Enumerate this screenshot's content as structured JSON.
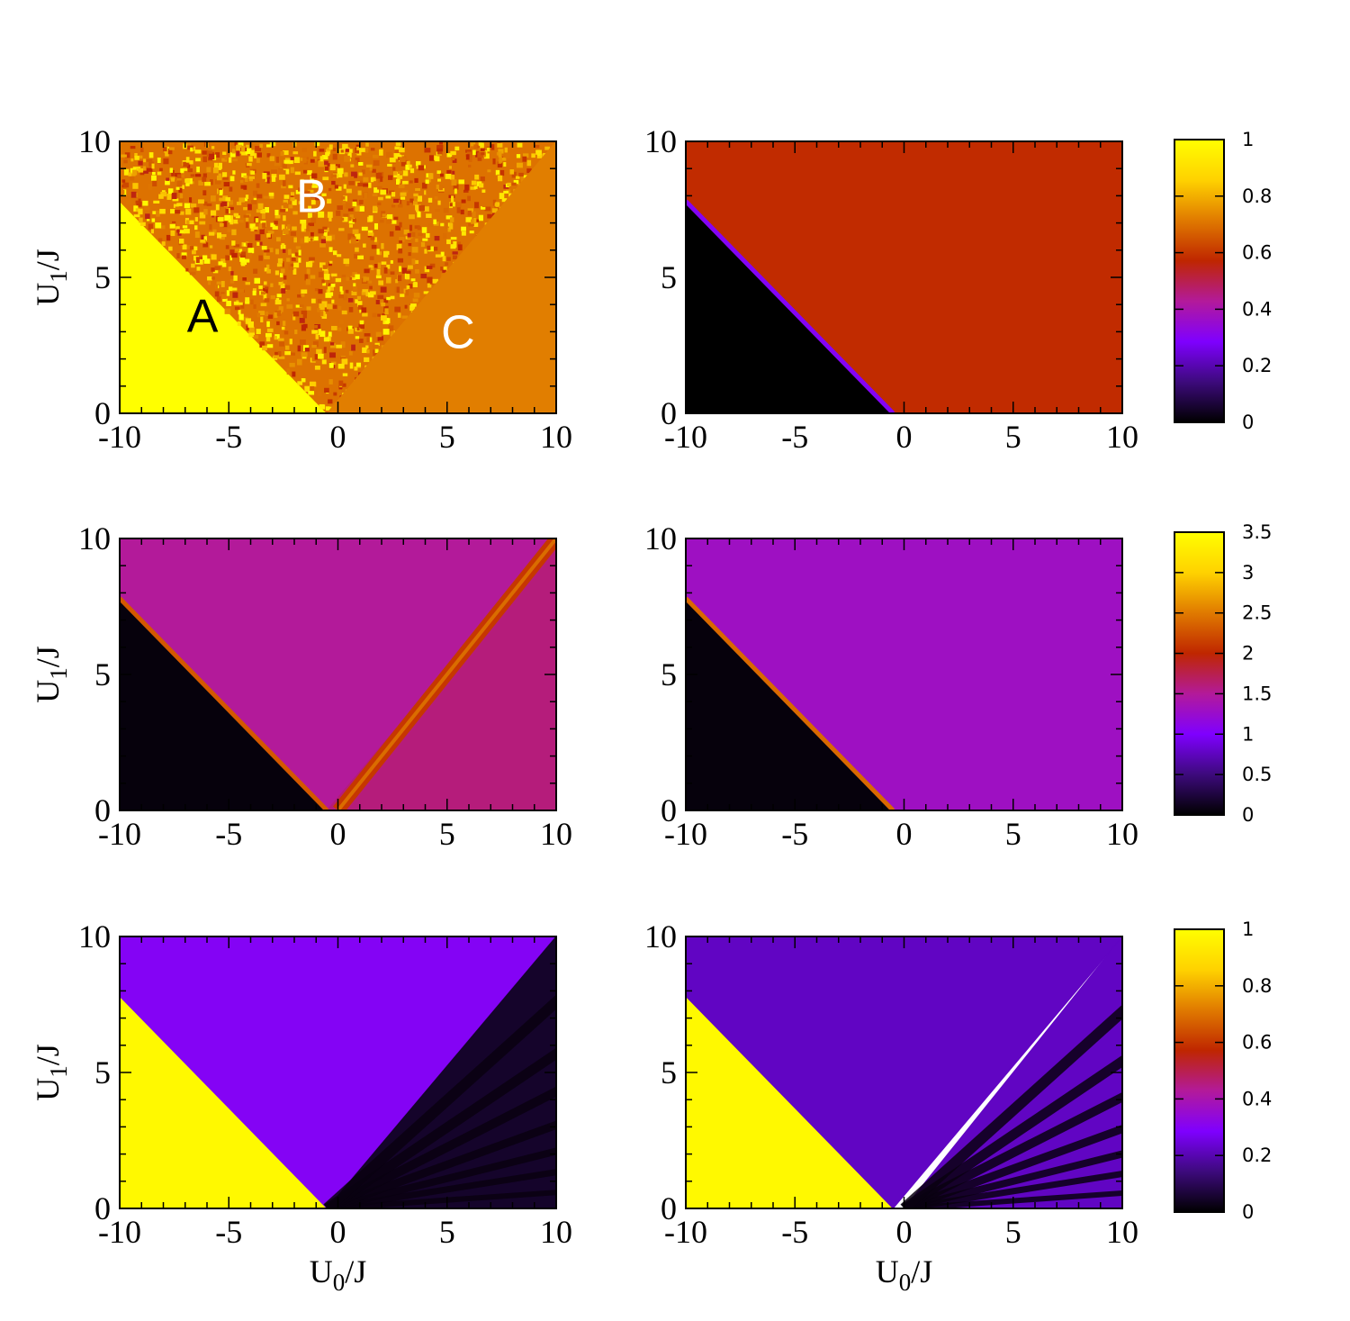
{
  "figure": {
    "colormap": [
      "#000000",
      "#3d0a7c",
      "#7f00ff",
      "#b31a9a",
      "#bf2600",
      "#e07a00",
      "#ffd200",
      "#ffff00"
    ],
    "axis_tick_color": "#000000"
  },
  "chart_data": [
    {
      "type": "heatmap",
      "panel": "row1-left",
      "xlabel": "",
      "ylabel": "U_1/J",
      "xlim": [
        -10,
        10
      ],
      "ylim": [
        0,
        10
      ],
      "xticks": [
        "-10",
        "-5",
        "0",
        "5",
        "10"
      ],
      "yticks": [
        "0",
        "5",
        "10"
      ],
      "color_range": [
        0,
        1
      ],
      "regions": [
        {
          "name": "A",
          "label": "A",
          "label_color": "#000000",
          "polygon": [
            [
              -10,
              0
            ],
            [
              -0.5,
              0
            ],
            [
              -10,
              7.8
            ]
          ],
          "value": 1.0,
          "note_label_at": [
            -6.2,
            3.6
          ]
        },
        {
          "name": "B",
          "label": "B",
          "label_color": "#ffffff",
          "polygon": [
            [
              -10,
              7.8
            ],
            [
              -0.5,
              0
            ],
            [
              10,
              10
            ],
            [
              -10,
              10
            ]
          ],
          "value": 0.7,
          "noisy": true,
          "note_label_at": [
            -1.2,
            8.0
          ]
        },
        {
          "name": "C",
          "label": "C",
          "label_color": "#ffffff",
          "polygon": [
            [
              -0.5,
              0
            ],
            [
              10,
              0
            ],
            [
              10,
              10
            ]
          ],
          "value": 0.72,
          "note_label_at": [
            5.5,
            3.0
          ]
        }
      ]
    },
    {
      "type": "heatmap",
      "panel": "row1-right",
      "xlabel": "",
      "ylabel": "",
      "xlim": [
        -10,
        10
      ],
      "ylim": [
        0,
        10
      ],
      "xticks": [
        "-10",
        "-5",
        "0",
        "5",
        "10"
      ],
      "yticks": [
        "0",
        "5",
        "10"
      ],
      "color_range": [
        0,
        1
      ],
      "regions": [
        {
          "polygon": [
            [
              -10,
              0
            ],
            [
              -0.5,
              0
            ],
            [
              -10,
              7.8
            ]
          ],
          "value": 0.0
        },
        {
          "polygon": [
            [
              -10,
              7.8
            ],
            [
              -0.5,
              0
            ],
            [
              10,
              0
            ],
            [
              10,
              10
            ],
            [
              -10,
              10
            ]
          ],
          "value": 0.58
        }
      ],
      "boundary": {
        "from": [
          -10,
          7.8
        ],
        "to": [
          -0.5,
          0
        ],
        "value": 0.3
      }
    },
    {
      "type": "heatmap",
      "panel": "row2-left",
      "xlabel": "",
      "ylabel": "U_1/J",
      "xlim": [
        -10,
        10
      ],
      "ylim": [
        0,
        10
      ],
      "xticks": [
        "-10",
        "-5",
        "0",
        "5",
        "10"
      ],
      "yticks": [
        "0",
        "5",
        "10"
      ],
      "color_range": [
        0,
        3.5
      ],
      "regions": [
        {
          "polygon": [
            [
              -10,
              0
            ],
            [
              -0.5,
              0
            ],
            [
              -10,
              7.8
            ]
          ],
          "value": 0.05
        },
        {
          "polygon": [
            [
              -10,
              7.8
            ],
            [
              -0.5,
              0
            ],
            [
              10,
              10
            ],
            [
              -10,
              10
            ]
          ],
          "value": 1.5
        },
        {
          "polygon": [
            [
              -0.5,
              0
            ],
            [
              10,
              0
            ],
            [
              10,
              10
            ]
          ],
          "value": 1.6
        }
      ],
      "boundary": {
        "from": [
          -10,
          7.8
        ],
        "to": [
          -0.5,
          0
        ],
        "value": 2.3
      },
      "diagonal_band": {
        "from": [
          0,
          0
        ],
        "to": [
          10,
          10
        ],
        "value": 2.1
      }
    },
    {
      "type": "heatmap",
      "panel": "row2-right",
      "xlabel": "",
      "ylabel": "",
      "xlim": [
        -10,
        10
      ],
      "ylim": [
        0,
        10
      ],
      "xticks": [
        "-10",
        "-5",
        "0",
        "5",
        "10"
      ],
      "yticks": [
        "0",
        "5",
        "10"
      ],
      "color_range": [
        0,
        3.5
      ],
      "regions": [
        {
          "polygon": [
            [
              -10,
              0
            ],
            [
              -0.5,
              0
            ],
            [
              -10,
              7.8
            ]
          ],
          "value": 0.05
        },
        {
          "polygon": [
            [
              -10,
              7.8
            ],
            [
              -0.5,
              0
            ],
            [
              10,
              0
            ],
            [
              10,
              10
            ],
            [
              -10,
              10
            ]
          ],
          "value": 1.3
        }
      ],
      "boundary": {
        "from": [
          -10,
          7.8
        ],
        "to": [
          -0.5,
          0
        ],
        "value": 2.4
      }
    },
    {
      "type": "heatmap",
      "panel": "row3-left",
      "xlabel": "U_0/J",
      "ylabel": "U_1/J",
      "xlim": [
        -10,
        10
      ],
      "ylim": [
        0,
        10
      ],
      "xticks": [
        "-10",
        "-5",
        "0",
        "5",
        "10"
      ],
      "yticks": [
        "0",
        "5",
        "10"
      ],
      "color_range": [
        0,
        1
      ],
      "regions": [
        {
          "polygon": [
            [
              -10,
              0
            ],
            [
              -0.5,
              0
            ],
            [
              -10,
              7.8
            ]
          ],
          "value": 0.98
        },
        {
          "polygon": [
            [
              -10,
              7.8
            ],
            [
              -0.5,
              0
            ],
            [
              10,
              10
            ],
            [
              -10,
              10
            ]
          ],
          "value": 0.3
        },
        {
          "polygon": [
            [
              -0.5,
              0
            ],
            [
              10,
              0
            ],
            [
              10,
              10
            ]
          ],
          "value": 0.05,
          "fringes": true
        }
      ]
    },
    {
      "type": "heatmap",
      "panel": "row3-right",
      "xlabel": "U_0/J",
      "ylabel": "",
      "xlim": [
        -10,
        10
      ],
      "ylim": [
        0,
        10
      ],
      "xticks": [
        "-10",
        "-5",
        "0",
        "5",
        "10"
      ],
      "yticks": [
        "0",
        "5",
        "10"
      ],
      "color_range": [
        0,
        1
      ],
      "regions": [
        {
          "polygon": [
            [
              -10,
              0
            ],
            [
              -0.5,
              0
            ],
            [
              -10,
              7.8
            ]
          ],
          "value": 0.98
        },
        {
          "polygon": [
            [
              -10,
              7.8
            ],
            [
              -0.5,
              0
            ],
            [
              10,
              10
            ],
            [
              -10,
              10
            ]
          ],
          "value": 0.22
        },
        {
          "polygon": [
            [
              0,
              0
            ],
            [
              10,
              0
            ],
            [
              10,
              10
            ]
          ],
          "value": 0.22,
          "fringes": true
        }
      ]
    }
  ],
  "colorbars": [
    {
      "row": 1,
      "min": 0,
      "max": 1,
      "ticks": [
        "0",
        "0.2",
        "0.4",
        "0.6",
        "0.8",
        "1"
      ]
    },
    {
      "row": 2,
      "min": 0,
      "max": 3.5,
      "ticks": [
        "0",
        "0.5",
        "1",
        "1.5",
        "2",
        "2.5",
        "3",
        "3.5"
      ]
    },
    {
      "row": 3,
      "min": 0,
      "max": 1,
      "ticks": [
        "0",
        "0.2",
        "0.4",
        "0.6",
        "0.8",
        "1"
      ]
    }
  ]
}
